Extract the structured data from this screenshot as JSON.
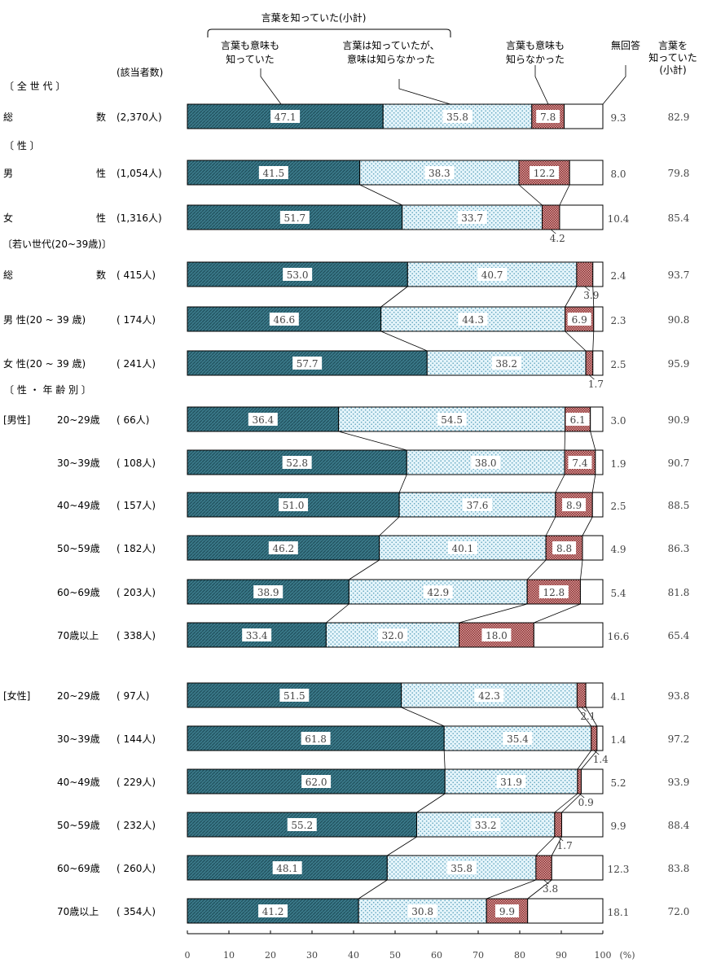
{
  "chart_data": {
    "type": "bar",
    "subtype": "stacked-horizontal-100",
    "headers": {
      "respondents": "(該当者数)",
      "subtotal_label": "言葉を知っていた(小計)",
      "legend": {
        "knew_both": "言葉も意味も知っていた",
        "knew_word_only": "言葉は知っていたが、意味は知らなかった",
        "knew_neither": "言葉も意味も知らなかった",
        "no_answer": "無回答",
        "subtotal": "言葉を知っていた(小計)"
      }
    },
    "series": [
      {
        "name": "言葉も意味も知っていた",
        "color": "#3b7a8a"
      },
      {
        "name": "言葉は知っていたが、意味は知らなかった",
        "color": "#d4ecf5"
      },
      {
        "name": "言葉も意味も知らなかった",
        "color": "#c06a6a"
      },
      {
        "name": "無回答",
        "color": "#ffffff"
      }
    ],
    "xlim": [
      0,
      100
    ],
    "xticks": [
      "0",
      "10",
      "20",
      "30",
      "40",
      "50",
      "60",
      "70",
      "80",
      "90",
      "100"
    ],
    "xunit": "(%)",
    "sections": [
      {
        "label": "〔 全 世 代 〕"
      },
      {
        "label": "〔 性 〕"
      },
      {
        "label": "〔若い世代(20~39歳)〕"
      },
      {
        "label": "〔 性 ・ 年 齢 別 〕"
      }
    ],
    "rows": [
      {
        "group": "",
        "label": "総 数",
        "n": "(2,370人)",
        "values": [
          47.1,
          35.8,
          7.8,
          9.3
        ],
        "subtotal": "82.9"
      },
      {
        "group": "",
        "label": "男 性",
        "n": "(1,054人)",
        "values": [
          41.5,
          38.3,
          12.2,
          8.0
        ],
        "subtotal": "79.8"
      },
      {
        "group": "",
        "label": "女 性",
        "n": "(1,316人)",
        "values": [
          51.7,
          33.7,
          4.2,
          10.4
        ],
        "subtotal": "85.4"
      },
      {
        "group": "",
        "label": "総 数",
        "n": "( 415人)",
        "values": [
          53.0,
          40.7,
          3.9,
          2.4
        ],
        "subtotal": "93.7"
      },
      {
        "group": "",
        "label": "男 性(20 ~ 39 歳)",
        "n": "( 174人)",
        "values": [
          46.6,
          44.3,
          6.9,
          2.3
        ],
        "subtotal": "90.8"
      },
      {
        "group": "",
        "label": "女 性(20 ~ 39 歳)",
        "n": "( 241人)",
        "values": [
          57.7,
          38.2,
          1.7,
          2.5
        ],
        "subtotal": "95.9"
      },
      {
        "group": "[男性]",
        "label": "20~29歳",
        "n": "( 66人)",
        "values": [
          36.4,
          54.5,
          6.1,
          3.0
        ],
        "subtotal": "90.9"
      },
      {
        "group": "",
        "label": "30~39歳",
        "n": "( 108人)",
        "values": [
          52.8,
          38.0,
          7.4,
          1.9
        ],
        "subtotal": "90.7"
      },
      {
        "group": "",
        "label": "40~49歳",
        "n": "( 157人)",
        "values": [
          51.0,
          37.6,
          8.9,
          2.5
        ],
        "subtotal": "88.5"
      },
      {
        "group": "",
        "label": "50~59歳",
        "n": "( 182人)",
        "values": [
          46.2,
          40.1,
          8.8,
          4.9
        ],
        "subtotal": "86.3"
      },
      {
        "group": "",
        "label": "60~69歳",
        "n": "( 203人)",
        "values": [
          38.9,
          42.9,
          12.8,
          5.4
        ],
        "subtotal": "81.8"
      },
      {
        "group": "",
        "label": "70歳以上",
        "n": "( 338人)",
        "values": [
          33.4,
          32.0,
          18.0,
          16.6
        ],
        "subtotal": "65.4"
      },
      {
        "group": "[女性]",
        "label": "20~29歳",
        "n": "( 97人)",
        "values": [
          51.5,
          42.3,
          2.1,
          4.1
        ],
        "subtotal": "93.8"
      },
      {
        "group": "",
        "label": "30~39歳",
        "n": "( 144人)",
        "values": [
          61.8,
          35.4,
          1.4,
          1.4
        ],
        "subtotal": "97.2"
      },
      {
        "group": "",
        "label": "40~49歳",
        "n": "( 229人)",
        "values": [
          62.0,
          31.9,
          0.9,
          5.2
        ],
        "subtotal": "93.9"
      },
      {
        "group": "",
        "label": "50~59歳",
        "n": "( 232人)",
        "values": [
          55.2,
          33.2,
          1.7,
          9.9
        ],
        "subtotal": "88.4"
      },
      {
        "group": "",
        "label": "60~69歳",
        "n": "( 260人)",
        "values": [
          48.1,
          35.8,
          3.8,
          12.3
        ],
        "subtotal": "83.8"
      },
      {
        "group": "",
        "label": "70歳以上",
        "n": "( 354人)",
        "values": [
          41.2,
          30.8,
          9.9,
          18.1
        ],
        "subtotal": "72.0"
      }
    ]
  }
}
